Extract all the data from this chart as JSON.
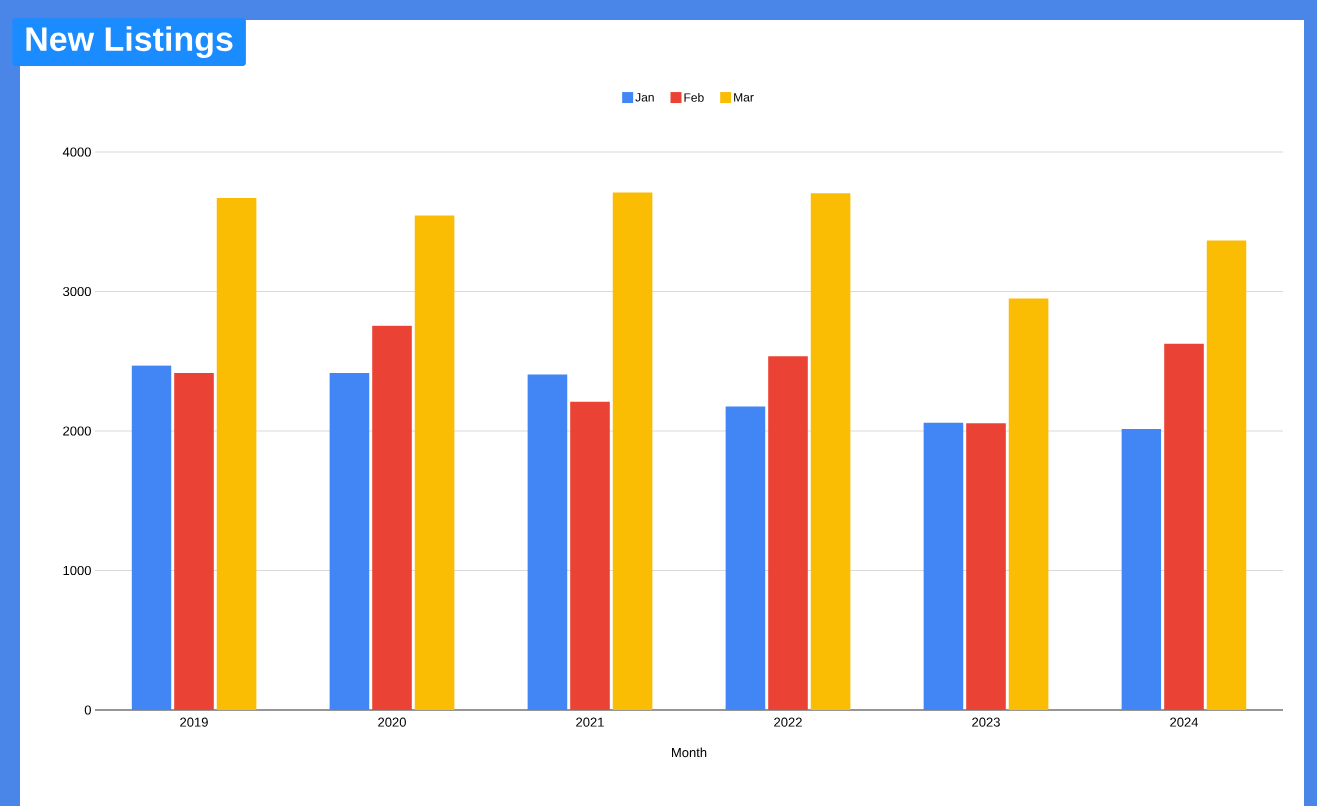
{
  "chart_data": {
    "type": "bar",
    "title": "New Listings",
    "xlabel": "Month",
    "categories": [
      "2019",
      "2020",
      "2021",
      "2022",
      "2023",
      "2024"
    ],
    "series": [
      {
        "name": "Jan",
        "color": "#4285f4",
        "values": [
          2470,
          2415,
          2405,
          2175,
          2060,
          2015
        ]
      },
      {
        "name": "Feb",
        "color": "#ea4335",
        "values": [
          2415,
          2755,
          2210,
          2535,
          2055,
          2625
        ]
      },
      {
        "name": "Mar",
        "color": "#fbbc04",
        "values": [
          3670,
          3545,
          3710,
          3705,
          2950,
          3365
        ]
      }
    ],
    "ylim": [
      0,
      4000
    ],
    "yticks": [
      0,
      1000,
      2000,
      3000,
      4000
    ],
    "grid": "y",
    "legend": "top"
  }
}
